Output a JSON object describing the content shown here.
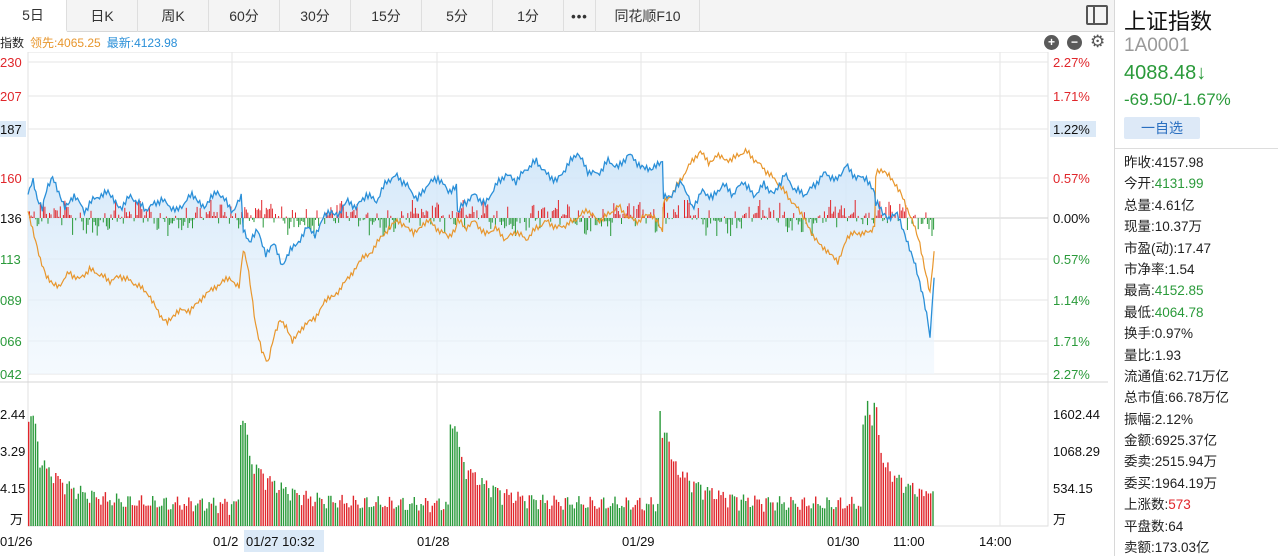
{
  "toolbar": {
    "tabs": [
      {
        "label": "5日",
        "active": true
      },
      {
        "label": "日K"
      },
      {
        "label": "周K"
      },
      {
        "label": "60分"
      },
      {
        "label": "30分"
      },
      {
        "label": "15分"
      },
      {
        "label": "5分"
      },
      {
        "label": "1分"
      },
      {
        "label": "•••"
      },
      {
        "label": "同花顺F10"
      }
    ]
  },
  "legend": {
    "name": "指数",
    "lead": "领先:4065.25",
    "latest": "最新:4123.98"
  },
  "colors": {
    "up": "#e0262b",
    "down": "#2a9a3a",
    "price_line": "#2a8fd8",
    "lead_line": "#e8962c",
    "grid": "#e6e6e6"
  },
  "chart_data": {
    "type": "line",
    "x_labels": [
      "01/26",
      "01/2",
      "01/27 10:32",
      "01/28",
      "01/29",
      "01/30",
      "11:00",
      "14:00"
    ],
    "price_axis_left": [
      "230",
      "207",
      "187",
      "160",
      "136",
      "113",
      "089",
      "066",
      "042"
    ],
    "pct_axis_right": [
      "2.27%",
      "1.71%",
      "1.22%",
      "0.57%",
      "0.00%",
      "0.57%",
      "1.14%",
      "1.71%",
      "2.27%"
    ],
    "baseline_pct": "0.00%",
    "volume_axis_left": [
      "2.44",
      "3.29",
      "4.15",
      "万"
    ],
    "volume_axis_right": [
      "1602.44",
      "1068.29",
      "534.15",
      "万"
    ],
    "price_range": [
      4042,
      4230
    ],
    "prev_close": 4136,
    "volume_max": 2000,
    "series": [
      {
        "name": "最新",
        "role": "price",
        "points": [
          [
            0,
            4150
          ],
          [
            5,
            4158
          ],
          [
            9,
            4146
          ],
          [
            14,
            4142
          ],
          [
            18,
            4152
          ],
          [
            24,
            4160
          ],
          [
            30,
            4151
          ],
          [
            36,
            4143
          ],
          [
            45,
            4150
          ],
          [
            55,
            4140
          ],
          [
            65,
            4148
          ],
          [
            78,
            4151
          ],
          [
            90,
            4142
          ],
          [
            100,
            4149
          ],
          [
            115,
            4141
          ],
          [
            130,
            4147
          ],
          [
            145,
            4140
          ],
          [
            160,
            4150
          ],
          [
            172,
            4143
          ],
          [
            185,
            4152
          ],
          [
            200,
            4140
          ],
          [
            208,
            4148
          ],
          [
            210,
            4130
          ],
          [
            216,
            4122
          ],
          [
            224,
            4128
          ],
          [
            232,
            4115
          ],
          [
            240,
            4120
          ],
          [
            248,
            4108
          ],
          [
            256,
            4116
          ],
          [
            264,
            4122
          ],
          [
            272,
            4130
          ],
          [
            280,
            4126
          ],
          [
            288,
            4136
          ],
          [
            296,
            4140
          ],
          [
            304,
            4138
          ],
          [
            312,
            4147
          ],
          [
            320,
            4142
          ],
          [
            330,
            4150
          ],
          [
            340,
            4146
          ],
          [
            350,
            4158
          ],
          [
            360,
            4161
          ],
          [
            370,
            4155
          ],
          [
            380,
            4147
          ],
          [
            390,
            4156
          ],
          [
            400,
            4160
          ],
          [
            410,
            4152
          ],
          [
            418,
            4155
          ],
          [
            419,
            4140
          ],
          [
            426,
            4145
          ],
          [
            436,
            4150
          ],
          [
            446,
            4144
          ],
          [
            456,
            4155
          ],
          [
            466,
            4162
          ],
          [
            476,
            4158
          ],
          [
            486,
            4165
          ],
          [
            496,
            4170
          ],
          [
            506,
            4162
          ],
          [
            516,
            4158
          ],
          [
            526,
            4167
          ],
          [
            536,
            4175
          ],
          [
            546,
            4164
          ],
          [
            556,
            4162
          ],
          [
            566,
            4170
          ],
          [
            576,
            4166
          ],
          [
            586,
            4174
          ],
          [
            596,
            4168
          ],
          [
            608,
            4164
          ],
          [
            619,
            4170
          ],
          [
            620,
            4148
          ],
          [
            628,
            4150
          ],
          [
            638,
            4158
          ],
          [
            648,
            4142
          ],
          [
            658,
            4152
          ],
          [
            668,
            4148
          ],
          [
            678,
            4156
          ],
          [
            688,
            4150
          ],
          [
            698,
            4158
          ],
          [
            708,
            4149
          ],
          [
            718,
            4156
          ],
          [
            728,
            4150
          ],
          [
            738,
            4162
          ],
          [
            748,
            4153
          ],
          [
            758,
            4150
          ],
          [
            768,
            4156
          ],
          [
            778,
            4163
          ],
          [
            788,
            4158
          ],
          [
            798,
            4167
          ],
          [
            808,
            4160
          ],
          [
            818,
            4160
          ],
          [
            826,
            4150
          ],
          [
            827,
            4145
          ],
          [
            834,
            4140
          ],
          [
            840,
            4136
          ],
          [
            848,
            4138
          ],
          [
            854,
            4128
          ],
          [
            860,
            4118
          ],
          [
            866,
            4108
          ],
          [
            870,
            4096
          ],
          [
            874,
            4086
          ],
          [
            878,
            4074
          ],
          [
            880,
            4062
          ],
          [
            882,
            4084
          ],
          [
            884,
            4100
          ]
        ]
      },
      {
        "name": "领先",
        "role": "lead",
        "points": [
          [
            0,
            4140
          ],
          [
            6,
            4125
          ],
          [
            12,
            4110
          ],
          [
            18,
            4100
          ],
          [
            24,
            4096
          ],
          [
            30,
            4095
          ],
          [
            40,
            4103
          ],
          [
            50,
            4099
          ],
          [
            60,
            4105
          ],
          [
            70,
            4102
          ],
          [
            80,
            4098
          ],
          [
            90,
            4101
          ],
          [
            100,
            4098
          ],
          [
            110,
            4094
          ],
          [
            118,
            4090
          ],
          [
            124,
            4084
          ],
          [
            130,
            4076
          ],
          [
            136,
            4073
          ],
          [
            142,
            4076
          ],
          [
            150,
            4082
          ],
          [
            158,
            4079
          ],
          [
            166,
            4086
          ],
          [
            174,
            4090
          ],
          [
            182,
            4094
          ],
          [
            190,
            4098
          ],
          [
            198,
            4099
          ],
          [
            206,
            4095
          ],
          [
            210,
            4118
          ],
          [
            214,
            4108
          ],
          [
            218,
            4090
          ],
          [
            222,
            4072
          ],
          [
            228,
            4056
          ],
          [
            234,
            4048
          ],
          [
            240,
            4064
          ],
          [
            246,
            4074
          ],
          [
            252,
            4070
          ],
          [
            258,
            4062
          ],
          [
            264,
            4068
          ],
          [
            272,
            4072
          ],
          [
            280,
            4076
          ],
          [
            288,
            4084
          ],
          [
            296,
            4089
          ],
          [
            304,
            4092
          ],
          [
            312,
            4100
          ],
          [
            320,
            4106
          ],
          [
            328,
            4113
          ],
          [
            336,
            4116
          ],
          [
            344,
            4124
          ],
          [
            352,
            4130
          ],
          [
            360,
            4134
          ],
          [
            368,
            4132
          ],
          [
            376,
            4126
          ],
          [
            384,
            4132
          ],
          [
            392,
            4134
          ],
          [
            400,
            4129
          ],
          [
            410,
            4125
          ],
          [
            418,
            4130
          ],
          [
            419,
            4136
          ],
          [
            426,
            4130
          ],
          [
            436,
            4134
          ],
          [
            446,
            4126
          ],
          [
            456,
            4130
          ],
          [
            466,
            4123
          ],
          [
            476,
            4128
          ],
          [
            486,
            4123
          ],
          [
            496,
            4130
          ],
          [
            506,
            4134
          ],
          [
            516,
            4130
          ],
          [
            526,
            4132
          ],
          [
            536,
            4136
          ],
          [
            546,
            4141
          ],
          [
            556,
            4134
          ],
          [
            566,
            4138
          ],
          [
            576,
            4143
          ],
          [
            586,
            4136
          ],
          [
            596,
            4134
          ],
          [
            606,
            4139
          ],
          [
            616,
            4132
          ],
          [
            619,
            4128
          ],
          [
            620,
            4145
          ],
          [
            628,
            4150
          ],
          [
            638,
            4160
          ],
          [
            648,
            4170
          ],
          [
            656,
            4176
          ],
          [
            664,
            4168
          ],
          [
            672,
            4174
          ],
          [
            680,
            4170
          ],
          [
            690,
            4172
          ],
          [
            700,
            4176
          ],
          [
            710,
            4170
          ],
          [
            720,
            4164
          ],
          [
            730,
            4158
          ],
          [
            740,
            4150
          ],
          [
            750,
            4142
          ],
          [
            758,
            4136
          ],
          [
            766,
            4124
          ],
          [
            774,
            4120
          ],
          [
            782,
            4114
          ],
          [
            790,
            4110
          ],
          [
            798,
            4122
          ],
          [
            806,
            4128
          ],
          [
            814,
            4126
          ],
          [
            822,
            4128
          ],
          [
            826,
            4130
          ],
          [
            827,
            4162
          ],
          [
            834,
            4165
          ],
          [
            840,
            4162
          ],
          [
            846,
            4156
          ],
          [
            852,
            4150
          ],
          [
            858,
            4140
          ],
          [
            864,
            4132
          ],
          [
            870,
            4120
          ],
          [
            876,
            4102
          ],
          [
            880,
            4090
          ],
          [
            884,
            4116
          ]
        ]
      }
    ]
  },
  "panel": {
    "title": "上证指数",
    "code": "1A0001",
    "price": "4088.48↓",
    "change": "-69.50/-1.67%",
    "watch_label": "一自选",
    "stats": [
      {
        "label": "昨收:",
        "value": "4157.98",
        "tone": "plain"
      },
      {
        "label": "今开:",
        "value": "4131.99",
        "tone": "green"
      },
      {
        "label": "总量:",
        "value": "4.61亿",
        "tone": "plain"
      },
      {
        "label": "现量:",
        "value": "10.37万",
        "tone": "plain"
      },
      {
        "label": "市盈(动):",
        "value": "17.47",
        "tone": "plain"
      },
      {
        "label": "市净率:",
        "value": "1.54",
        "tone": "plain"
      },
      {
        "label": "最高:",
        "value": "4152.85",
        "tone": "green"
      },
      {
        "label": "最低:",
        "value": "4064.78",
        "tone": "green"
      },
      {
        "label": "换手:",
        "value": "0.97%",
        "tone": "plain"
      },
      {
        "label": "量比:",
        "value": "1.93",
        "tone": "plain"
      },
      {
        "label": "流通值:",
        "value": "62.71万亿",
        "tone": "plain"
      },
      {
        "label": "总市值:",
        "value": "66.78万亿",
        "tone": "plain"
      },
      {
        "label": "振幅:",
        "value": "2.12%",
        "tone": "plain"
      },
      {
        "label": "金额:",
        "value": "6925.37亿",
        "tone": "plain"
      },
      {
        "label": "委卖:",
        "value": "2515.94万",
        "tone": "plain"
      },
      {
        "label": "委买:",
        "value": "1964.19万",
        "tone": "plain"
      },
      {
        "label": "上涨数:",
        "value": "573",
        "tone": "red"
      },
      {
        "label": "平盘数:",
        "value": "64",
        "tone": "plain"
      },
      {
        "label": "卖额:",
        "value": "173.03亿",
        "tone": "plain"
      }
    ]
  }
}
